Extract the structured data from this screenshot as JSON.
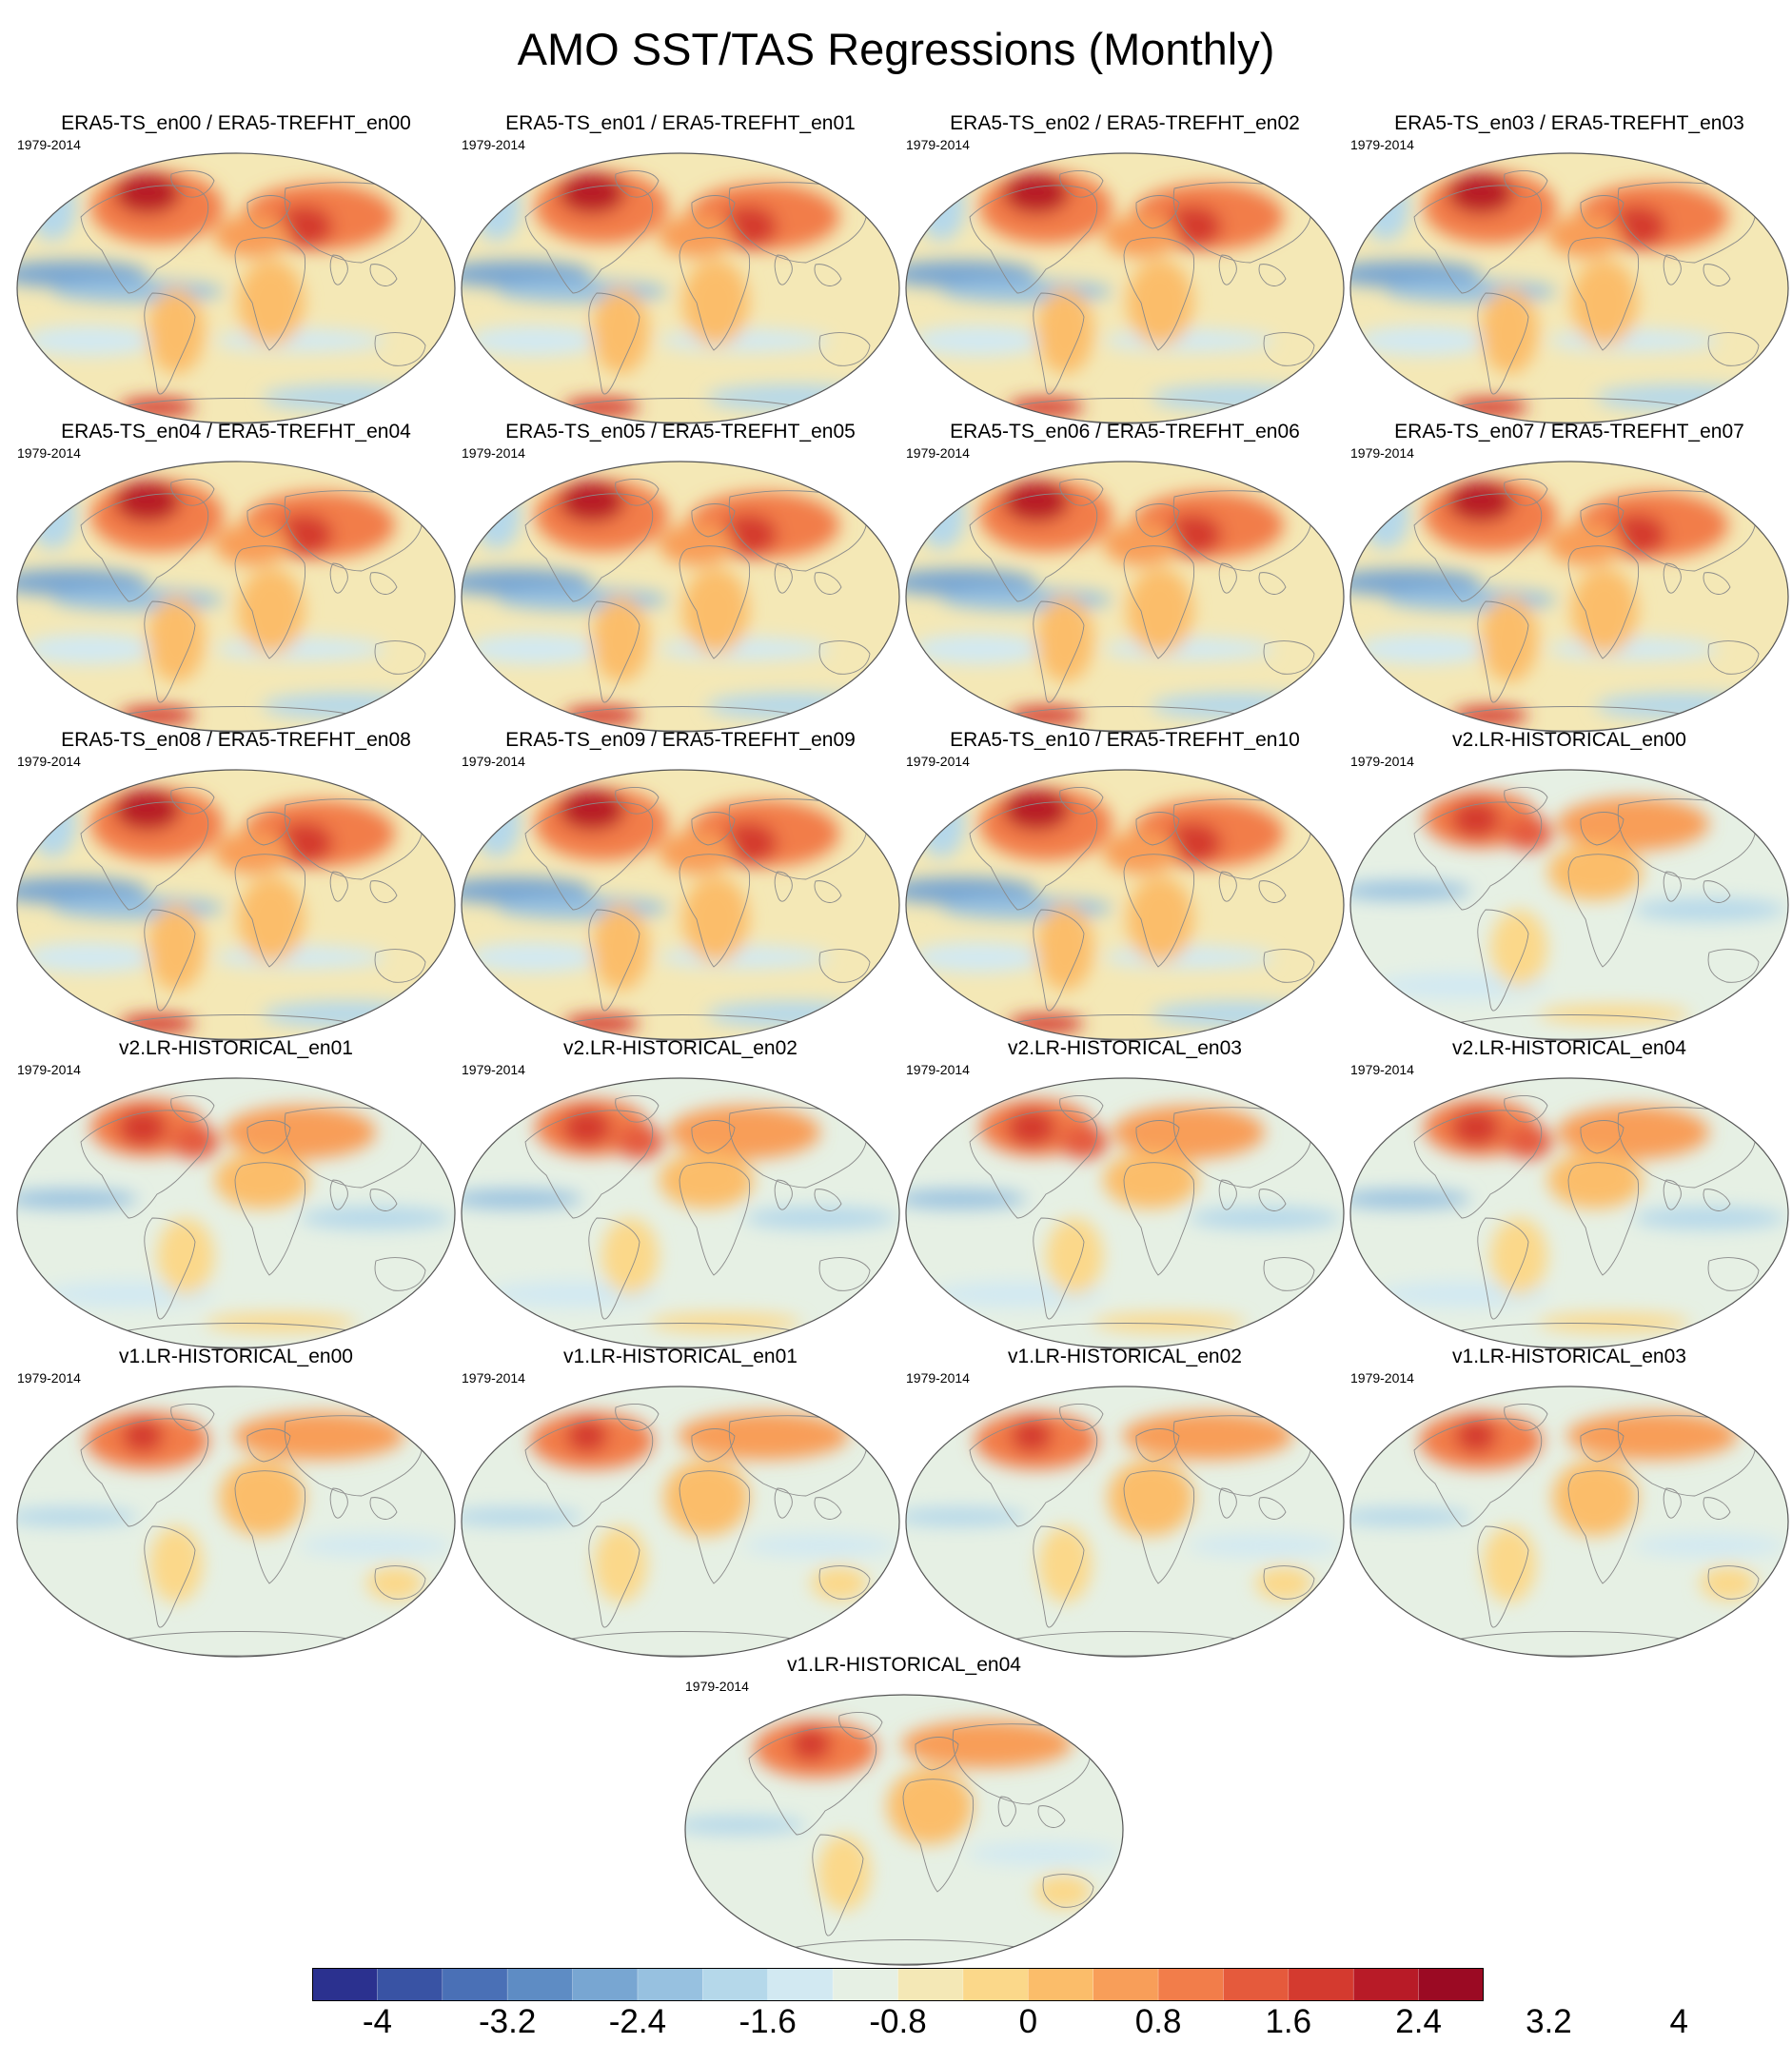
{
  "title": "AMO SST/TAS Regressions (Monthly)",
  "panels": [
    {
      "title": "ERA5-TS_en00 / ERA5-TREFHT_en00",
      "period": "1979-2014",
      "source": "ERA5"
    },
    {
      "title": "ERA5-TS_en01 / ERA5-TREFHT_en01",
      "period": "1979-2014",
      "source": "ERA5"
    },
    {
      "title": "ERA5-TS_en02 / ERA5-TREFHT_en02",
      "period": "1979-2014",
      "source": "ERA5"
    },
    {
      "title": "ERA5-TS_en03 / ERA5-TREFHT_en03",
      "period": "1979-2014",
      "source": "ERA5"
    },
    {
      "title": "ERA5-TS_en04 / ERA5-TREFHT_en04",
      "period": "1979-2014",
      "source": "ERA5"
    },
    {
      "title": "ERA5-TS_en05 / ERA5-TREFHT_en05",
      "period": "1979-2014",
      "source": "ERA5"
    },
    {
      "title": "ERA5-TS_en06 / ERA5-TREFHT_en06",
      "period": "1979-2014",
      "source": "ERA5"
    },
    {
      "title": "ERA5-TS_en07 / ERA5-TREFHT_en07",
      "period": "1979-2014",
      "source": "ERA5"
    },
    {
      "title": "ERA5-TS_en08 / ERA5-TREFHT_en08",
      "period": "1979-2014",
      "source": "ERA5"
    },
    {
      "title": "ERA5-TS_en09 / ERA5-TREFHT_en09",
      "period": "1979-2014",
      "source": "ERA5"
    },
    {
      "title": "ERA5-TS_en10 / ERA5-TREFHT_en10",
      "period": "1979-2014",
      "source": "ERA5"
    },
    {
      "title": "v2.LR-HISTORICAL_en00",
      "period": "1979-2014",
      "source": "v2"
    },
    {
      "title": "v2.LR-HISTORICAL_en01",
      "period": "1979-2014",
      "source": "v2"
    },
    {
      "title": "v2.LR-HISTORICAL_en02",
      "period": "1979-2014",
      "source": "v2"
    },
    {
      "title": "v2.LR-HISTORICAL_en03",
      "period": "1979-2014",
      "source": "v2"
    },
    {
      "title": "v2.LR-HISTORICAL_en04",
      "period": "1979-2014",
      "source": "v2"
    },
    {
      "title": "v1.LR-HISTORICAL_en00",
      "period": "1979-2014",
      "source": "v1"
    },
    {
      "title": "v1.LR-HISTORICAL_en01",
      "period": "1979-2014",
      "source": "v1"
    },
    {
      "title": "v1.LR-HISTORICAL_en02",
      "period": "1979-2014",
      "source": "v1"
    },
    {
      "title": "v1.LR-HISTORICAL_en03",
      "period": "1979-2014",
      "source": "v1"
    },
    {
      "title": "v1.LR-HISTORICAL_en04",
      "period": "1979-2014",
      "source": "v1"
    }
  ],
  "colorbar": {
    "colors": [
      "#2b318f",
      "#3953a4",
      "#4a70b6",
      "#5e8cc4",
      "#78a6d2",
      "#97c1e0",
      "#b5d8ea",
      "#d2e9f2",
      "#e6f0e4",
      "#f4e8b6",
      "#fbd88a",
      "#fbbd6a",
      "#f89e59",
      "#f27d4a",
      "#e55a3c",
      "#d43a2f",
      "#b81b27",
      "#9b0a23"
    ],
    "tick_labels": [
      "-4",
      "-3.2",
      "-2.4",
      "-1.6",
      "-0.8",
      "0",
      "0.8",
      "1.6",
      "2.4",
      "3.2",
      "4"
    ]
  }
}
